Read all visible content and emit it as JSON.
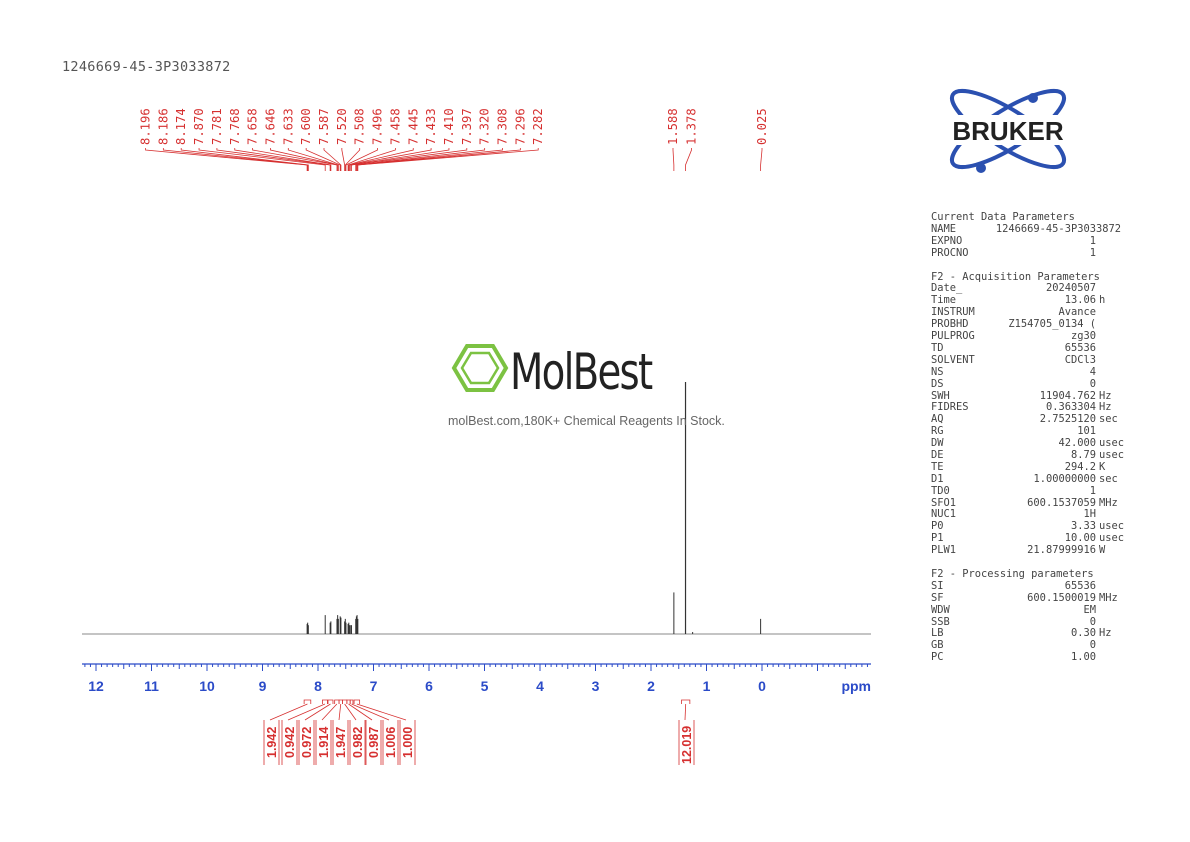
{
  "sample_id": "1246669-45-3P3033872",
  "watermark": {
    "brand": "MolBest",
    "tagline": "molBest.com,180K+ Chemical Reagents In Stock."
  },
  "logo": {
    "text": "BRUKER",
    "color": "#2b50b0"
  },
  "colors": {
    "annotation": "#d63030",
    "axis": "#2b4bc8",
    "spectrum": "#333333",
    "watermark_green": "#7cc242"
  },
  "parameters": {
    "current": {
      "title": "Current Data Parameters",
      "rows": [
        {
          "k": "NAME",
          "v": "1246669-45-3P3033872",
          "u": ""
        },
        {
          "k": "EXPNO",
          "v": "1",
          "u": ""
        },
        {
          "k": "PROCNO",
          "v": "1",
          "u": ""
        }
      ]
    },
    "acquisition": {
      "title": "F2 - Acquisition Parameters",
      "rows": [
        {
          "k": "Date_",
          "v": "20240507",
          "u": ""
        },
        {
          "k": "Time",
          "v": "13.06",
          "u": "h"
        },
        {
          "k": "INSTRUM",
          "v": "Avance",
          "u": ""
        },
        {
          "k": "PROBHD",
          "v": "Z154705_0134 (",
          "u": ""
        },
        {
          "k": "PULPROG",
          "v": "zg30",
          "u": ""
        },
        {
          "k": "TD",
          "v": "65536",
          "u": ""
        },
        {
          "k": "SOLVENT",
          "v": "CDCl3",
          "u": ""
        },
        {
          "k": "NS",
          "v": "4",
          "u": ""
        },
        {
          "k": "DS",
          "v": "0",
          "u": ""
        },
        {
          "k": "SWH",
          "v": "11904.762",
          "u": "Hz"
        },
        {
          "k": "FIDRES",
          "v": "0.363304",
          "u": "Hz"
        },
        {
          "k": "AQ",
          "v": "2.7525120",
          "u": "sec"
        },
        {
          "k": "RG",
          "v": "101",
          "u": ""
        },
        {
          "k": "DW",
          "v": "42.000",
          "u": "usec"
        },
        {
          "k": "DE",
          "v": "8.79",
          "u": "usec"
        },
        {
          "k": "TE",
          "v": "294.2",
          "u": "K"
        },
        {
          "k": "D1",
          "v": "1.00000000",
          "u": "sec"
        },
        {
          "k": "TD0",
          "v": "1",
          "u": ""
        },
        {
          "k": "SFO1",
          "v": "600.1537059",
          "u": "MHz"
        },
        {
          "k": "NUC1",
          "v": "1H",
          "u": ""
        },
        {
          "k": "P0",
          "v": "3.33",
          "u": "usec"
        },
        {
          "k": "P1",
          "v": "10.00",
          "u": "usec"
        },
        {
          "k": "PLW1",
          "v": "21.87999916",
          "u": "W"
        }
      ]
    },
    "processing": {
      "title": "F2 - Processing parameters",
      "rows": [
        {
          "k": "SI",
          "v": "65536",
          "u": ""
        },
        {
          "k": "SF",
          "v": "600.1500019",
          "u": "MHz"
        },
        {
          "k": "WDW",
          "v": "EM",
          "u": ""
        },
        {
          "k": "SSB",
          "v": "0",
          "u": ""
        },
        {
          "k": "LB",
          "v": "0.30",
          "u": "Hz"
        },
        {
          "k": "GB",
          "v": "0",
          "u": ""
        },
        {
          "k": "PC",
          "v": "1.00",
          "u": ""
        }
      ]
    }
  },
  "chart_data": {
    "type": "line",
    "xlabel": "ppm",
    "xlim": [
      12.3,
      -1.95
    ],
    "x_ticks": [
      12,
      11,
      10,
      9,
      8,
      7,
      6,
      5,
      4,
      3,
      2,
      1,
      0
    ],
    "x_tick_labels": [
      "12",
      "11",
      "10",
      "9",
      "8",
      "7",
      "6",
      "5",
      "4",
      "3",
      "2",
      "1",
      "0"
    ],
    "peak_labels_group1": [
      "8.196",
      "8.186",
      "8.174",
      "7.870",
      "7.781",
      "7.768",
      "7.658",
      "7.646",
      "7.633",
      "7.600",
      "7.587",
      "7.520",
      "7.508",
      "7.496",
      "7.458",
      "7.445",
      "7.433",
      "7.410",
      "7.397",
      "7.320",
      "7.308",
      "7.296",
      "7.282"
    ],
    "peak_labels_group2": [
      "1.588",
      "1.378"
    ],
    "peak_labels_group3": [
      "0.025"
    ],
    "peaks": [
      {
        "ppm": 8.196,
        "height": 0.04
      },
      {
        "ppm": 8.186,
        "height": 0.045
      },
      {
        "ppm": 8.174,
        "height": 0.035
      },
      {
        "ppm": 7.87,
        "height": 0.075
      },
      {
        "ppm": 7.781,
        "height": 0.045
      },
      {
        "ppm": 7.768,
        "height": 0.05
      },
      {
        "ppm": 7.658,
        "height": 0.06
      },
      {
        "ppm": 7.646,
        "height": 0.075
      },
      {
        "ppm": 7.633,
        "height": 0.06
      },
      {
        "ppm": 7.6,
        "height": 0.07
      },
      {
        "ppm": 7.587,
        "height": 0.065
      },
      {
        "ppm": 7.52,
        "height": 0.05
      },
      {
        "ppm": 7.508,
        "height": 0.06
      },
      {
        "ppm": 7.496,
        "height": 0.045
      },
      {
        "ppm": 7.458,
        "height": 0.04
      },
      {
        "ppm": 7.445,
        "height": 0.045
      },
      {
        "ppm": 7.433,
        "height": 0.035
      },
      {
        "ppm": 7.41,
        "height": 0.035
      },
      {
        "ppm": 7.397,
        "height": 0.035
      },
      {
        "ppm": 7.32,
        "height": 0.06
      },
      {
        "ppm": 7.308,
        "height": 0.07
      },
      {
        "ppm": 7.296,
        "height": 0.075
      },
      {
        "ppm": 7.282,
        "height": 0.06
      },
      {
        "ppm": 1.588,
        "height": 0.165
      },
      {
        "ppm": 1.378,
        "height": 1.0
      },
      {
        "ppm": 1.25,
        "height": 0.008
      },
      {
        "ppm": 0.025,
        "height": 0.06
      }
    ],
    "integrals": [
      {
        "label": "1.942",
        "from": 8.25,
        "to": 8.13
      },
      {
        "label": "0.942",
        "from": 7.92,
        "to": 7.83
      },
      {
        "label": "0.972",
        "from": 7.82,
        "to": 7.73
      },
      {
        "label": "1.914",
        "from": 7.7,
        "to": 7.62
      },
      {
        "label": "1.947",
        "from": 7.62,
        "to": 7.56
      },
      {
        "label": "0.982",
        "from": 7.56,
        "to": 7.48
      },
      {
        "label": "0.987",
        "from": 7.48,
        "to": 7.42
      },
      {
        "label": "1.006",
        "from": 7.42,
        "to": 7.37
      },
      {
        "label": "1.000",
        "from": 7.35,
        "to": 7.25
      },
      {
        "label": "12.019",
        "from": 1.45,
        "to": 1.3
      }
    ]
  }
}
